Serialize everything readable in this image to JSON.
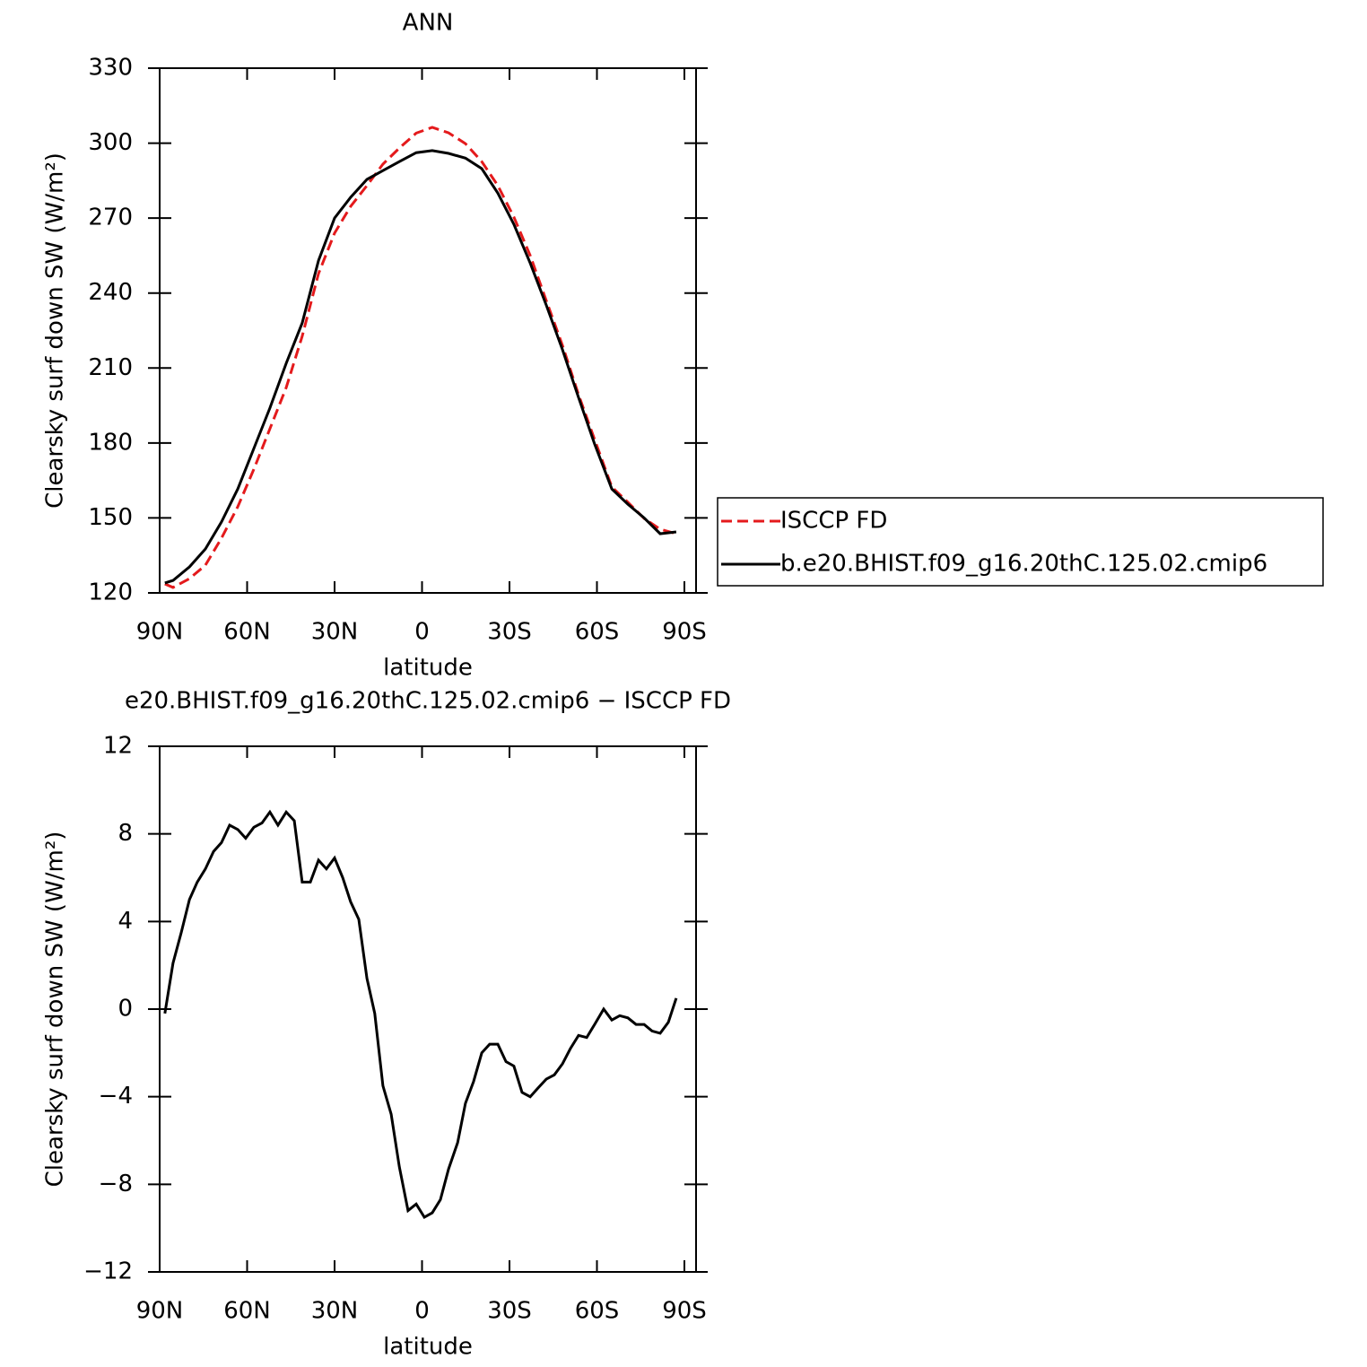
{
  "chart_data": [
    {
      "type": "line",
      "title": "ANN",
      "xlabel": "latitude",
      "ylabel": "Clearsky surf down SW (W/m²)",
      "xlim": [
        90,
        -94
      ],
      "ylim": [
        120,
        330
      ],
      "xticks": [
        {
          "value": 90,
          "label": "90N"
        },
        {
          "value": 60,
          "label": "60N"
        },
        {
          "value": 30,
          "label": "30N"
        },
        0,
        {
          "value": -30,
          "label": "30S"
        },
        {
          "value": -60,
          "label": "60S"
        },
        {
          "value": -90,
          "label": "90S"
        }
      ],
      "yticks": [
        120,
        150,
        180,
        210,
        240,
        270,
        300,
        330
      ],
      "x": [
        88.2,
        85.4,
        79.8,
        74.3,
        68.8,
        63.2,
        57.7,
        52.2,
        46.6,
        41.1,
        35.5,
        30.0,
        24.5,
        18.9,
        13.4,
        7.8,
        2.0,
        -3.5,
        -9.1,
        -14.9,
        -20.5,
        -26.0,
        -31.5,
        -37.1,
        -42.6,
        -48.2,
        -53.7,
        -59.2,
        -65.1,
        -70.6,
        -76.2,
        -81.7,
        -87.2
      ],
      "series": [
        {
          "name": "ISCCP FD",
          "color": "#e41a1c",
          "dash": "dashed",
          "values": [
            123.6,
            122.2,
            125.7,
            131.1,
            141.9,
            154.5,
            169.5,
            185.7,
            202.2,
            222.7,
            247.8,
            264,
            274.7,
            283,
            291.6,
            298,
            304,
            306.3,
            304.1,
            299.8,
            292.6,
            283,
            270.4,
            255,
            237,
            219,
            199.3,
            181.4,
            162.4,
            156.3,
            149.8,
            145.5,
            143.7
          ]
        },
        {
          "name": "b.e20.BHIST.f09_g16.20thC.125.02.cmip6",
          "color": "#000000",
          "dash": "solid",
          "values": [
            124,
            125,
            130.4,
            137.6,
            148.4,
            161.6,
            177.8,
            194,
            211.9,
            228,
            253,
            270,
            278.3,
            285.5,
            289,
            292.6,
            296.2,
            297,
            295.9,
            294,
            289.8,
            280,
            267.5,
            252,
            235.2,
            217.3,
            198.2,
            179.6,
            161.6,
            155.5,
            150,
            143.7,
            144.4
          ]
        }
      ],
      "legend": "right"
    },
    {
      "type": "line",
      "title": "e20.BHIST.f09_g16.20thC.125.02.cmip6 − ISCCP FD",
      "xlabel": "latitude",
      "ylabel": "Clearsky surf down SW (W/m²)",
      "xlim": [
        90,
        -94
      ],
      "ylim": [
        -12,
        12
      ],
      "xticks": [
        {
          "value": 90,
          "label": "90N"
        },
        {
          "value": 60,
          "label": "60N"
        },
        {
          "value": 30,
          "label": "30N"
        },
        0,
        {
          "value": -30,
          "label": "30S"
        },
        {
          "value": -60,
          "label": "60S"
        },
        {
          "value": -90,
          "label": "90S"
        }
      ],
      "yticks": [
        {
          "value": -12,
          "label": "−12"
        },
        {
          "value": -8,
          "label": "−8"
        },
        {
          "value": -4,
          "label": "−4"
        },
        0,
        4,
        8,
        12
      ],
      "x": [
        88.2,
        85.4,
        82.6,
        79.8,
        77.1,
        74.3,
        71.5,
        68.8,
        66.0,
        63.2,
        60.5,
        57.7,
        54.9,
        52.2,
        49.4,
        46.6,
        43.8,
        41.1,
        38.3,
        35.5,
        32.8,
        30.0,
        27.2,
        24.5,
        21.7,
        18.9,
        16.2,
        13.4,
        10.6,
        7.8,
        4.8,
        2.0,
        -0.8,
        -3.5,
        -6.3,
        -9.1,
        -12.2,
        -14.9,
        -17.7,
        -20.5,
        -23.2,
        -26.0,
        -28.8,
        -31.5,
        -34.3,
        -37.1,
        -39.8,
        -42.6,
        -45.4,
        -48.2,
        -50.9,
        -53.7,
        -56.5,
        -59.2,
        -62.3,
        -65.1,
        -67.8,
        -70.6,
        -73.4,
        -76.2,
        -78.9,
        -81.7,
        -84.5,
        -87.2
      ],
      "color": "#000000",
      "values": [
        -0.2,
        2.1,
        3.5,
        5.0,
        5.8,
        6.4,
        7.2,
        7.6,
        8.4,
        8.2,
        7.8,
        8.3,
        8.5,
        9.0,
        8.4,
        9.0,
        8.6,
        5.8,
        5.8,
        6.8,
        6.4,
        6.9,
        6.0,
        4.9,
        4.1,
        1.4,
        -0.2,
        -3.5,
        -4.8,
        -7.2,
        -9.2,
        -8.9,
        -9.5,
        -9.3,
        -8.7,
        -7.3,
        -6.1,
        -4.3,
        -3.3,
        -2.0,
        -1.6,
        -1.6,
        -2.4,
        -2.6,
        -3.8,
        -4.0,
        -3.6,
        -3.2,
        -3.0,
        -2.5,
        -1.8,
        -1.2,
        -1.3,
        -0.7,
        0.0,
        -0.5,
        -0.3,
        -0.4,
        -0.7,
        -0.7,
        -1.0,
        -1.1,
        -0.6,
        0.5
      ]
    }
  ]
}
